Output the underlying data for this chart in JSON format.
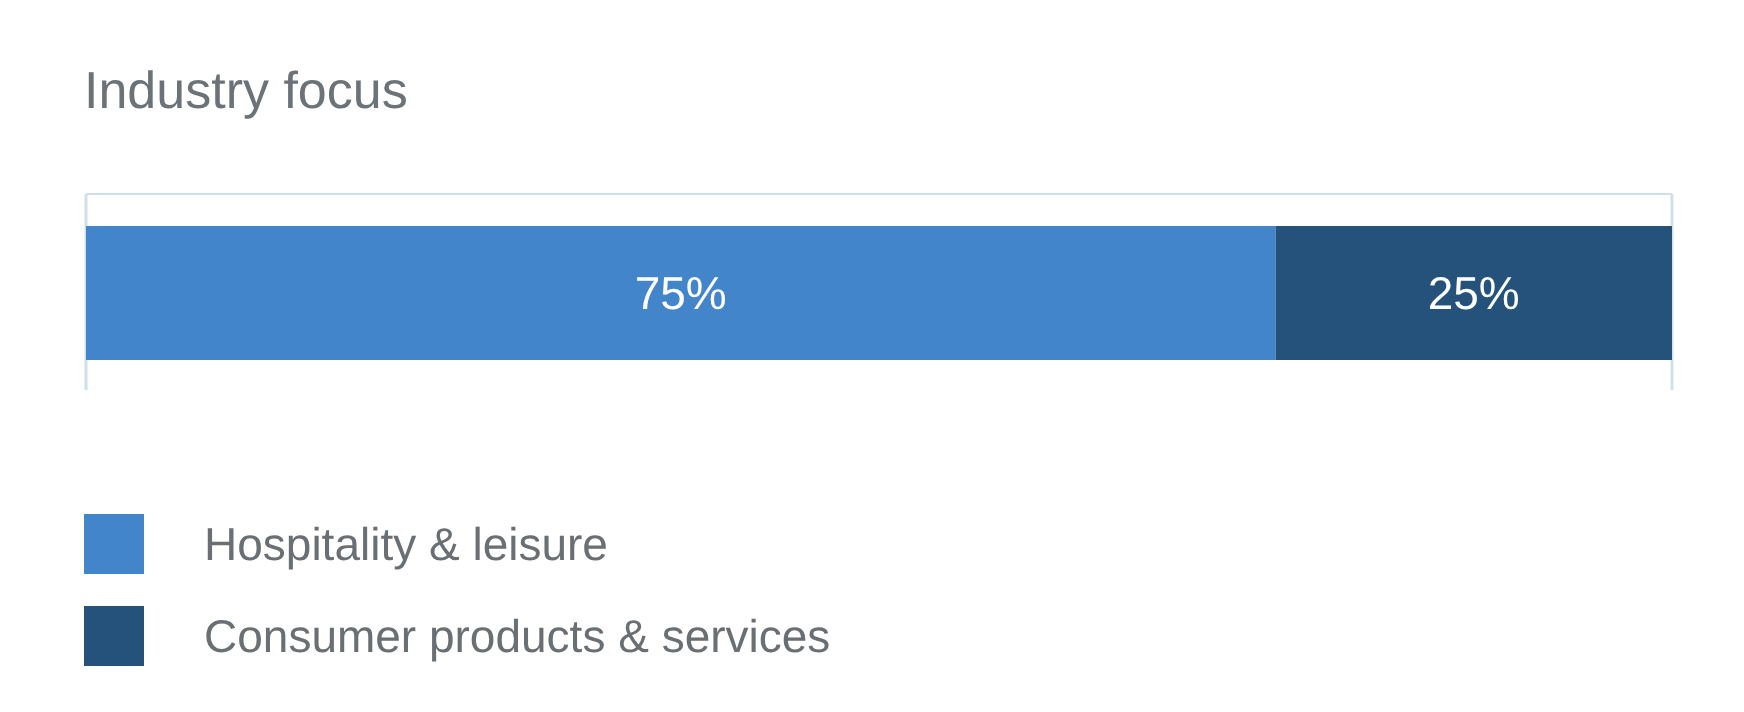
{
  "chart_data": {
    "type": "bar",
    "title": "Industry focus",
    "orientation": "horizontal",
    "stacked": true,
    "categories": [
      null
    ],
    "series": [
      {
        "name": "Hospitality & leisure",
        "color": "#4285cb",
        "values": [
          75
        ],
        "value_labels": [
          "75%"
        ]
      },
      {
        "name": "Consumer products & services",
        "color": "#24527b",
        "values": [
          25
        ],
        "value_labels": [
          "25%"
        ]
      }
    ],
    "xlim": [
      0,
      100
    ],
    "xticks": [
      {
        "value": 0,
        "label": null
      },
      {
        "value": 100,
        "label": null
      }
    ],
    "tick_labels": false,
    "grid": "x",
    "legend": "bottom left"
  }
}
